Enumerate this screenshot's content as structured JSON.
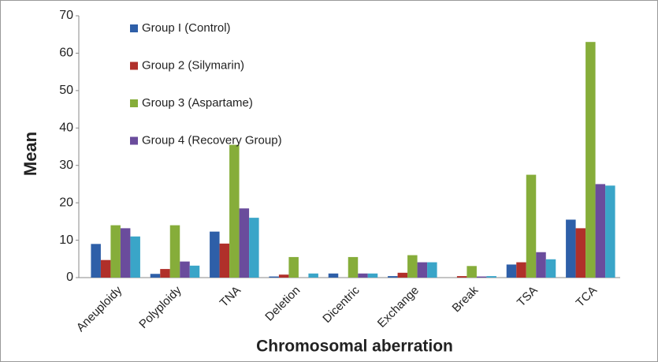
{
  "chart_data": {
    "type": "bar",
    "x_label": "Chromosomal aberration",
    "y_label": "Mean",
    "categories": [
      "Aneuploidy",
      "Polyploidy",
      "TNA",
      "Deletion",
      "Dicentric",
      "Exchange",
      "Break",
      "TSA",
      "TCA"
    ],
    "series": [
      {
        "name": "Group I (Control)",
        "color": "#2e5fa8",
        "values": [
          9,
          1,
          12.3,
          0.3,
          1.1,
          0.4,
          0,
          3.5,
          15.5
        ]
      },
      {
        "name": "Group 2 (Silymarin)",
        "color": "#b0302a",
        "values": [
          4.7,
          2.3,
          9.1,
          0.8,
          0,
          1.3,
          0.4,
          4.1,
          13.2
        ]
      },
      {
        "name": "Group 3 (Aspartame)",
        "color": "#86ad3a",
        "values": [
          14,
          14,
          35.5,
          5.5,
          5.5,
          6,
          3.1,
          27.5,
          63
        ]
      },
      {
        "name": "Group 4 (Recovery Group)",
        "color": "#6a4c9c",
        "values": [
          13.2,
          4.3,
          18.5,
          0,
          1.1,
          4.1,
          0.3,
          6.8,
          25
        ]
      },
      {
        "color": "#3aa5c8",
        "values": [
          11,
          3.2,
          16,
          1.1,
          1.1,
          4.1,
          0.4,
          4.9,
          24.6
        ]
      }
    ],
    "ylim": [
      0,
      70
    ],
    "yticks": [
      0,
      10,
      20,
      30,
      40,
      50,
      60,
      70
    ],
    "grid": false,
    "legend": "top-left"
  }
}
